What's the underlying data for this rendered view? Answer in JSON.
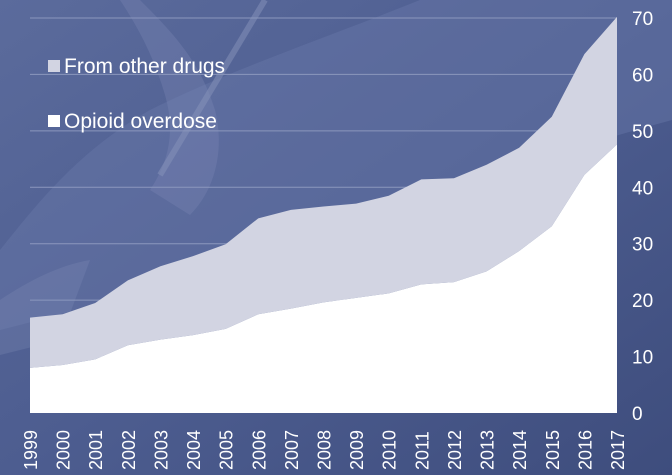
{
  "chart_data": {
    "type": "area",
    "stacked": true,
    "title": "",
    "xlabel": "",
    "ylabel": "",
    "x": [
      "1999",
      "2000",
      "2001",
      "2002",
      "2003",
      "2004",
      "2005",
      "2006",
      "2007",
      "2008",
      "2009",
      "2010",
      "2011",
      "2012",
      "2013",
      "2014",
      "2015",
      "2016",
      "2017"
    ],
    "ylim": [
      0,
      70
    ],
    "yticks": [
      0,
      10,
      20,
      30,
      40,
      50,
      60,
      70
    ],
    "y_axis_side": "right",
    "grid": true,
    "legend_position": "top-left",
    "series": [
      {
        "name": "Opioid overdose",
        "color": "#ffffff",
        "values": [
          8.0,
          8.5,
          9.5,
          12.0,
          13.0,
          13.8,
          14.9,
          17.5,
          18.5,
          19.6,
          20.4,
          21.2,
          22.8,
          23.2,
          25.1,
          28.7,
          33.1,
          42.2,
          47.6
        ]
      },
      {
        "name": "From other drugs",
        "color": "#d2d4e2",
        "values": [
          8.9,
          9.0,
          10.0,
          11.5,
          13.0,
          14.0,
          15.0,
          17.0,
          17.5,
          17.0,
          16.7,
          17.3,
          18.6,
          18.4,
          18.9,
          18.3,
          19.4,
          21.4,
          22.6
        ]
      }
    ],
    "legend": [
      {
        "label": "From other drugs",
        "color": "#d2d4e2"
      },
      {
        "label": "Opioid overdose",
        "color": "#ffffff"
      }
    ]
  }
}
